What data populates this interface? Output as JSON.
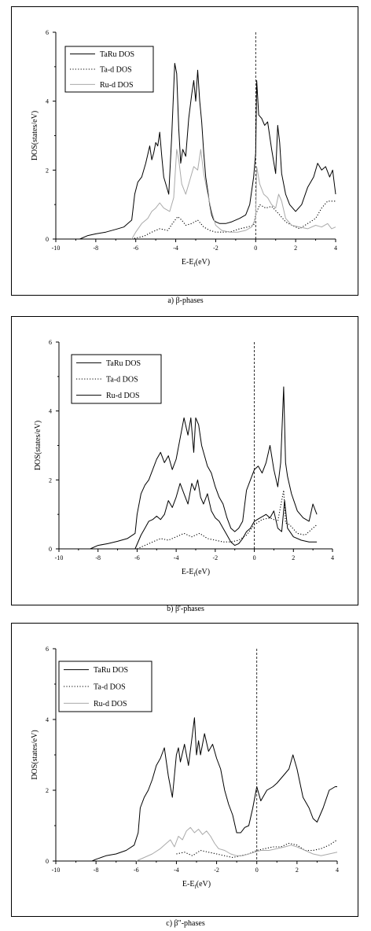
{
  "captions": [
    "a) β-phases",
    "b) β'-phases",
    "c) β\"-phases"
  ],
  "chart_data": [
    {
      "type": "line",
      "xlabel": "E-E",
      "xlabel_sub": "f",
      "xlabel_unit": "(eV)",
      "ylabel": "DOS(states/eV)",
      "xlim": [
        -10,
        4
      ],
      "ylim": [
        0,
        6
      ],
      "xticks": [
        -10,
        -8,
        -6,
        -4,
        -2,
        0,
        2,
        4
      ],
      "yticks": [
        0,
        2,
        4,
        6
      ],
      "fermi_x": 0,
      "legend_position": "top-left",
      "series": [
        {
          "name": "TaRu DOS",
          "style": "solid",
          "color": "#000000",
          "x": [
            -8.8,
            -8.4,
            -8,
            -7.5,
            -7,
            -6.6,
            -6.2,
            -6.05,
            -5.9,
            -5.7,
            -5.5,
            -5.3,
            -5.2,
            -5.1,
            -5,
            -4.9,
            -4.8,
            -4.7,
            -4.6,
            -4.5,
            -4.35,
            -4.2,
            -4.05,
            -3.95,
            -3.85,
            -3.75,
            -3.65,
            -3.5,
            -3.35,
            -3.2,
            -3.1,
            -3,
            -2.9,
            -2.8,
            -2.7,
            -2.6,
            -2.5,
            -2.4,
            -2.3,
            -2.2,
            -2.1,
            -2,
            -1.8,
            -1.5,
            -1.2,
            -0.8,
            -0.5,
            -0.3,
            -0.1,
            0,
            0.05,
            0.15,
            0.3,
            0.45,
            0.6,
            0.8,
            1,
            1.1,
            1.2,
            1.3,
            1.5,
            1.7,
            2,
            2.3,
            2.6,
            2.9,
            3.1,
            3.3,
            3.5,
            3.7,
            3.85,
            4
          ],
          "y": [
            0,
            0.1,
            0.15,
            0.2,
            0.28,
            0.35,
            0.55,
            1.3,
            1.65,
            1.8,
            2.2,
            2.7,
            2.3,
            2.5,
            2.8,
            2.7,
            3.1,
            2.4,
            1.8,
            1.6,
            1.3,
            3.0,
            5.1,
            4.8,
            3.2,
            2.2,
            2.6,
            2.4,
            3.5,
            4.2,
            4.6,
            4.0,
            4.9,
            4.0,
            3.4,
            2.5,
            1.8,
            1.4,
            1.0,
            0.7,
            0.55,
            0.5,
            0.45,
            0.45,
            0.5,
            0.6,
            0.7,
            1.0,
            1.8,
            2.5,
            4.6,
            3.6,
            3.5,
            3.3,
            3.4,
            2.6,
            1.9,
            3.3,
            2.8,
            1.9,
            1.3,
            1.0,
            0.8,
            1.0,
            1.5,
            1.8,
            2.2,
            2.0,
            2.1,
            1.8,
            2.0,
            1.3
          ]
        },
        {
          "name": "Ta-d DOS",
          "style": "dotted",
          "color": "#000000",
          "x": [
            -6.2,
            -6,
            -5.6,
            -5.2,
            -4.8,
            -4.4,
            -4.1,
            -3.9,
            -3.7,
            -3.5,
            -3.2,
            -2.9,
            -2.6,
            -2.3,
            -2,
            -1.6,
            -1.2,
            -0.8,
            -0.4,
            -0.1,
            0,
            0.2,
            0.5,
            0.8,
            1.2,
            1.5,
            1.8,
            2.2,
            2.6,
            3,
            3.3,
            3.6,
            4
          ],
          "y": [
            0,
            0.03,
            0.08,
            0.2,
            0.3,
            0.25,
            0.5,
            0.65,
            0.55,
            0.4,
            0.45,
            0.55,
            0.35,
            0.25,
            0.2,
            0.2,
            0.22,
            0.3,
            0.35,
            0.4,
            0.7,
            1.0,
            0.9,
            0.95,
            0.7,
            0.5,
            0.4,
            0.3,
            0.45,
            0.6,
            0.9,
            1.1,
            1.1
          ]
        },
        {
          "name": "Ru-d DOS",
          "style": "solid",
          "color": "#aaaaaa",
          "x": [
            -6.2,
            -6,
            -5.7,
            -5.4,
            -5.2,
            -5,
            -4.8,
            -4.6,
            -4.3,
            -4.1,
            -3.95,
            -3.85,
            -3.7,
            -3.5,
            -3.3,
            -3.1,
            -2.9,
            -2.75,
            -2.6,
            -2.4,
            -2.2,
            -2,
            -1.7,
            -1.3,
            -0.9,
            -0.5,
            -0.2,
            0,
            0.05,
            0.2,
            0.4,
            0.6,
            0.8,
            1,
            1.15,
            1.3,
            1.5,
            1.8,
            2.2,
            2.6,
            3,
            3.3,
            3.6,
            3.8,
            4
          ],
          "y": [
            0,
            0.2,
            0.45,
            0.6,
            0.8,
            0.9,
            1.05,
            0.9,
            0.8,
            1.2,
            2.6,
            2.3,
            1.6,
            1.3,
            1.7,
            2.1,
            2.0,
            2.6,
            1.9,
            1.3,
            0.8,
            0.4,
            0.25,
            0.2,
            0.2,
            0.25,
            0.35,
            0.6,
            2.1,
            1.6,
            1.3,
            1.2,
            1.0,
            0.9,
            1.3,
            1.1,
            0.6,
            0.4,
            0.35,
            0.3,
            0.4,
            0.35,
            0.45,
            0.3,
            0.35
          ]
        }
      ]
    },
    {
      "type": "line",
      "xlabel": "E-E",
      "xlabel_sub": "f",
      "xlabel_unit": "(eV)",
      "ylabel": "DOS(states/eV)",
      "xlim": [
        -10,
        4
      ],
      "ylim": [
        0,
        6
      ],
      "xticks": [
        -10,
        -8,
        -6,
        -4,
        -2,
        0,
        2,
        4
      ],
      "yticks": [
        0,
        2,
        4,
        6
      ],
      "fermi_x": 0,
      "legend_position": "top-left",
      "series": [
        {
          "name": "TaRu DOS",
          "style": "solid",
          "color": "#000000",
          "x": [
            -8.4,
            -8,
            -7.5,
            -7,
            -6.5,
            -6.1,
            -6.0,
            -5.8,
            -5.6,
            -5.4,
            -5.2,
            -5,
            -4.8,
            -4.6,
            -4.4,
            -4.2,
            -4,
            -3.8,
            -3.6,
            -3.4,
            -3.25,
            -3.1,
            -3,
            -2.85,
            -2.7,
            -2.55,
            -2.4,
            -2.2,
            -2,
            -1.8,
            -1.6,
            -1.4,
            -1.2,
            -1,
            -0.8,
            -0.6,
            -0.4,
            -0.2,
            0,
            0.2,
            0.4,
            0.6,
            0.8,
            1,
            1.2,
            1.35,
            1.5,
            1.6,
            1.7,
            1.9,
            2.2,
            2.5,
            2.8,
            3,
            3.2
          ],
          "y": [
            0,
            0.1,
            0.15,
            0.22,
            0.3,
            0.45,
            1.0,
            1.6,
            1.85,
            2.0,
            2.3,
            2.6,
            2.8,
            2.5,
            2.7,
            2.3,
            2.6,
            3.2,
            3.8,
            3.3,
            3.8,
            2.8,
            3.8,
            3.6,
            3.0,
            2.7,
            2.4,
            2.2,
            1.8,
            1.5,
            1.3,
            0.9,
            0.6,
            0.5,
            0.6,
            0.8,
            1.7,
            2.0,
            2.3,
            2.4,
            2.2,
            2.5,
            3.0,
            2.3,
            1.8,
            2.5,
            4.7,
            2.5,
            2.1,
            1.6,
            1.1,
            0.9,
            0.8,
            1.3,
            1.0
          ]
        },
        {
          "name": "Ta-d DOS",
          "style": "dotted",
          "color": "#000000",
          "x": [
            -6,
            -5.6,
            -5.2,
            -4.8,
            -4.4,
            -4,
            -3.6,
            -3.2,
            -2.8,
            -2.4,
            -2,
            -1.6,
            -1.2,
            -0.8,
            -0.4,
            0,
            0.4,
            0.8,
            1.2,
            1.5,
            1.6,
            1.8,
            2.2,
            2.6,
            3,
            3.2
          ],
          "y": [
            0,
            0.1,
            0.2,
            0.3,
            0.25,
            0.35,
            0.45,
            0.35,
            0.45,
            0.3,
            0.25,
            0.2,
            0.2,
            0.25,
            0.4,
            0.7,
            0.85,
            0.9,
            0.8,
            1.7,
            0.75,
            0.7,
            0.45,
            0.4,
            0.6,
            0.7
          ]
        },
        {
          "name": "Ru-d DOS",
          "style": "solid",
          "color": "#000000",
          "x": [
            -6.1,
            -5.8,
            -5.6,
            -5.4,
            -5.2,
            -5,
            -4.8,
            -4.6,
            -4.4,
            -4.2,
            -4,
            -3.8,
            -3.6,
            -3.4,
            -3.2,
            -3.05,
            -2.9,
            -2.75,
            -2.6,
            -2.4,
            -2.2,
            -2,
            -1.8,
            -1.6,
            -1.4,
            -1.2,
            -1,
            -0.8,
            -0.6,
            -0.4,
            -0.2,
            0,
            0.3,
            0.6,
            0.8,
            1,
            1.2,
            1.4,
            1.55,
            1.7,
            2,
            2.4,
            2.8,
            3.2
          ],
          "y": [
            0,
            0.4,
            0.6,
            0.8,
            0.85,
            0.95,
            0.85,
            1.0,
            1.4,
            1.2,
            1.5,
            1.9,
            1.6,
            1.3,
            1.9,
            1.7,
            2.0,
            1.5,
            1.3,
            1.6,
            1.1,
            0.9,
            0.8,
            0.6,
            0.4,
            0.2,
            0.1,
            0.15,
            0.3,
            0.5,
            0.6,
            0.8,
            0.9,
            1.0,
            0.9,
            1.1,
            0.6,
            0.5,
            1.4,
            0.6,
            0.35,
            0.25,
            0.2,
            0.2
          ]
        }
      ]
    },
    {
      "type": "line",
      "xlabel": "E-E",
      "xlabel_sub": "f",
      "xlabel_unit": "(eV)",
      "ylabel": "DOS(states/eV)",
      "xlim": [
        -10,
        4
      ],
      "ylim": [
        0,
        6
      ],
      "xticks": [
        -10,
        -8,
        -6,
        -4,
        -2,
        0,
        2,
        4
      ],
      "yticks": [
        0,
        2,
        4,
        6
      ],
      "fermi_x": 0,
      "legend_position": "top-left",
      "series": [
        {
          "name": "TaRu DOS",
          "style": "solid",
          "color": "#000000",
          "x": [
            -8.2,
            -8,
            -7.5,
            -7,
            -6.5,
            -6.1,
            -5.9,
            -5.8,
            -5.6,
            -5.4,
            -5.2,
            -5,
            -4.8,
            -4.6,
            -4.4,
            -4.2,
            -4,
            -3.9,
            -3.8,
            -3.6,
            -3.4,
            -3.2,
            -3.1,
            -3,
            -2.9,
            -2.8,
            -2.6,
            -2.4,
            -2.2,
            -2,
            -1.8,
            -1.6,
            -1.4,
            -1.2,
            -1,
            -0.8,
            -0.6,
            -0.4,
            -0.2,
            0,
            0.2,
            0.5,
            0.8,
            1,
            1.3,
            1.6,
            1.8,
            2,
            2.3,
            2.6,
            2.8,
            3,
            3.3,
            3.6,
            3.9,
            4
          ],
          "y": [
            0,
            0.05,
            0.15,
            0.2,
            0.3,
            0.45,
            0.8,
            1.5,
            1.8,
            2.0,
            2.3,
            2.7,
            2.9,
            3.2,
            2.4,
            1.8,
            3.0,
            3.2,
            2.8,
            3.3,
            2.7,
            3.6,
            4.05,
            3.0,
            3.4,
            3.0,
            3.6,
            3.1,
            3.3,
            2.9,
            2.6,
            2.0,
            1.6,
            1.3,
            0.8,
            0.8,
            0.95,
            1.0,
            1.5,
            2.1,
            1.7,
            2.0,
            2.1,
            2.2,
            2.4,
            2.6,
            3.0,
            2.6,
            1.8,
            1.5,
            1.2,
            1.1,
            1.5,
            2.0,
            2.1,
            2.1
          ]
        },
        {
          "name": "Ta-d DOS",
          "style": "dotted",
          "color": "#000000",
          "x": [
            -4,
            -3.6,
            -3.2,
            -2.8,
            -2.4,
            -2,
            -1.6,
            -1.2,
            -0.8,
            -0.4,
            0,
            0.4,
            0.8,
            1.2,
            1.6,
            2,
            2.4,
            2.8,
            3.2,
            3.6,
            4
          ],
          "y": [
            0.2,
            0.25,
            0.15,
            0.3,
            0.25,
            0.2,
            0.15,
            0.1,
            0.15,
            0.2,
            0.3,
            0.35,
            0.4,
            0.4,
            0.5,
            0.45,
            0.3,
            0.3,
            0.35,
            0.45,
            0.6
          ]
        },
        {
          "name": "Ru-d DOS",
          "style": "solid",
          "color": "#aaaaaa",
          "x": [
            -6,
            -5.6,
            -5.2,
            -4.8,
            -4.5,
            -4.3,
            -4.1,
            -3.9,
            -3.7,
            -3.5,
            -3.3,
            -3.1,
            -2.9,
            -2.7,
            -2.5,
            -2.3,
            -2.1,
            -1.9,
            -1.6,
            -1.3,
            -1,
            -0.7,
            -0.4,
            -0.1,
            0.2,
            0.6,
            1,
            1.4,
            1.7,
            2,
            2.4,
            2.8,
            3.2,
            3.6,
            4
          ],
          "y": [
            0.0,
            0.1,
            0.2,
            0.35,
            0.5,
            0.6,
            0.4,
            0.7,
            0.6,
            0.85,
            0.95,
            0.8,
            0.9,
            0.75,
            0.85,
            0.7,
            0.5,
            0.35,
            0.3,
            0.2,
            0.15,
            0.15,
            0.2,
            0.25,
            0.3,
            0.3,
            0.35,
            0.4,
            0.45,
            0.4,
            0.3,
            0.2,
            0.15,
            0.2,
            0.25
          ]
        }
      ]
    }
  ]
}
